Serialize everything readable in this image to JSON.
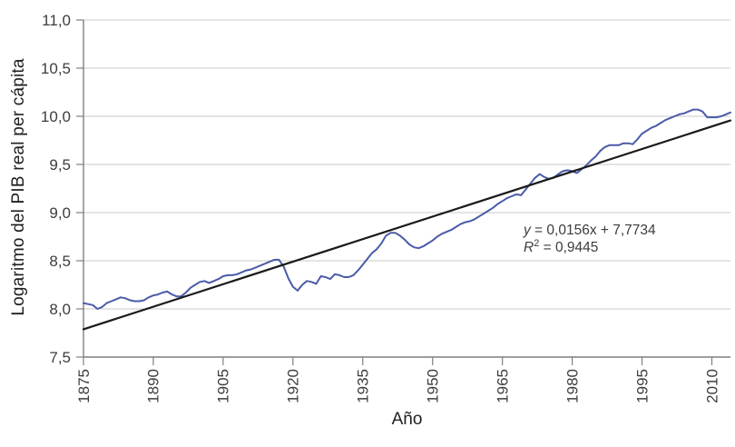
{
  "chart": {
    "y_title": "Logaritmo del PIB real per cápita",
    "x_title": "Año"
  },
  "equation": {
    "line1_var": "y",
    "line1_rest": " = 0,0156x + 7,7734",
    "line2_var": "R",
    "line2_sup": "2",
    "line2_rest": " = 0,9445"
  },
  "colors": {
    "background": "#ffffff",
    "gridline": "#c8c8c8",
    "axis": "#7f7f7f",
    "tick_label": "#3d3d3d",
    "series_blue": "#4a5ba8",
    "trend_black": "#1a1a1a",
    "title_text": "#1f1f1f",
    "equation_text": "#3c3c3c"
  },
  "chart_data": {
    "type": "line",
    "title": "",
    "xlabel": "Año",
    "ylabel": "Logaritmo del PIB real per cápita",
    "xlim": [
      1875,
      2014
    ],
    "ylim": [
      7.5,
      11.0
    ],
    "x_ticks": [
      1875,
      1890,
      1905,
      1920,
      1935,
      1950,
      1965,
      1980,
      1995,
      2010
    ],
    "x_tick_labels": [
      "1875",
      "1890",
      "1905",
      "1920",
      "1935",
      "1950",
      "1965",
      "1980",
      "1995",
      "2010"
    ],
    "y_ticks": [
      7.5,
      8.0,
      8.5,
      9.0,
      9.5,
      10.0,
      10.5,
      11.0
    ],
    "y_tick_labels": [
      "7,5",
      "8,0",
      "8,5",
      "9,0",
      "9,5",
      "10,0",
      "10,5",
      "11,0"
    ],
    "grid": "horizontal",
    "legend": "none",
    "x_tick_label_rotation": -90,
    "annotations": [
      "y = 0,0156x + 7,7734",
      "R² = 0,9445"
    ],
    "series": [
      {
        "id": "gdp-log-line",
        "name": "Logaritmo del PIB real per cápita",
        "color": "#4a5ba8",
        "x": [
          1875,
          1876,
          1877,
          1878,
          1879,
          1880,
          1881,
          1882,
          1883,
          1884,
          1885,
          1886,
          1887,
          1888,
          1889,
          1890,
          1891,
          1892,
          1893,
          1894,
          1895,
          1896,
          1897,
          1898,
          1899,
          1900,
          1901,
          1902,
          1903,
          1904,
          1905,
          1906,
          1907,
          1908,
          1909,
          1910,
          1911,
          1912,
          1913,
          1914,
          1915,
          1916,
          1917,
          1918,
          1919,
          1920,
          1921,
          1922,
          1923,
          1924,
          1925,
          1926,
          1927,
          1928,
          1929,
          1930,
          1931,
          1932,
          1933,
          1934,
          1935,
          1936,
          1937,
          1938,
          1939,
          1940,
          1941,
          1942,
          1943,
          1944,
          1945,
          1946,
          1947,
          1948,
          1949,
          1950,
          1951,
          1952,
          1953,
          1954,
          1955,
          1956,
          1957,
          1958,
          1959,
          1960,
          1961,
          1962,
          1963,
          1964,
          1965,
          1966,
          1967,
          1968,
          1969,
          1970,
          1971,
          1972,
          1973,
          1974,
          1975,
          1976,
          1977,
          1978,
          1979,
          1980,
          1981,
          1982,
          1983,
          1984,
          1985,
          1986,
          1987,
          1988,
          1989,
          1990,
          1991,
          1992,
          1993,
          1994,
          1995,
          1996,
          1997,
          1998,
          1999,
          2000,
          2001,
          2002,
          2003,
          2004,
          2005,
          2006,
          2007,
          2008,
          2009,
          2010,
          2011,
          2012,
          2013,
          2014
        ],
        "y": [
          8.06,
          8.05,
          8.04,
          8.0,
          8.02,
          8.06,
          8.08,
          8.1,
          8.12,
          8.11,
          8.09,
          8.08,
          8.08,
          8.09,
          8.12,
          8.14,
          8.15,
          8.17,
          8.18,
          8.15,
          8.13,
          8.13,
          8.17,
          8.22,
          8.25,
          8.28,
          8.29,
          8.27,
          8.29,
          8.31,
          8.34,
          8.35,
          8.35,
          8.36,
          8.38,
          8.4,
          8.41,
          8.43,
          8.45,
          8.47,
          8.49,
          8.51,
          8.51,
          8.44,
          8.32,
          8.23,
          8.19,
          8.25,
          8.29,
          8.28,
          8.26,
          8.34,
          8.33,
          8.31,
          8.36,
          8.35,
          8.33,
          8.33,
          8.35,
          8.4,
          8.46,
          8.52,
          8.58,
          8.62,
          8.68,
          8.76,
          8.79,
          8.79,
          8.76,
          8.72,
          8.67,
          8.64,
          8.63,
          8.65,
          8.68,
          8.71,
          8.75,
          8.78,
          8.8,
          8.82,
          8.85,
          8.88,
          8.9,
          8.91,
          8.93,
          8.96,
          8.99,
          9.02,
          9.05,
          9.09,
          9.12,
          9.15,
          9.17,
          9.19,
          9.18,
          9.24,
          9.3,
          9.36,
          9.4,
          9.37,
          9.35,
          9.36,
          9.4,
          9.43,
          9.44,
          9.43,
          9.41,
          9.45,
          9.49,
          9.54,
          9.58,
          9.64,
          9.68,
          9.7,
          9.7,
          9.7,
          9.72,
          9.72,
          9.71,
          9.76,
          9.82,
          9.85,
          9.88,
          9.9,
          9.93,
          9.96,
          9.98,
          10.0,
          10.02,
          10.03,
          10.05,
          10.07,
          10.07,
          10.05,
          9.99,
          9.99,
          9.99,
          10.0,
          10.02,
          10.04
        ]
      },
      {
        "id": "trend-line",
        "name": "Línea de tendencia",
        "color": "#1a1a1a",
        "trend": {
          "slope": 0.0156,
          "intercept": 7.7734,
          "x_base_year": 1874
        },
        "x": [
          1875,
          2014
        ],
        "y": [
          7.789,
          9.957
        ]
      }
    ]
  }
}
